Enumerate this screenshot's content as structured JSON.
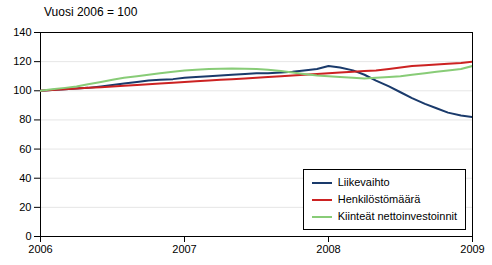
{
  "chart_data": {
    "type": "line",
    "title": "Vuosi 2006 = 100",
    "x": [
      2006.0,
      2006.08,
      2006.17,
      2006.25,
      2006.33,
      2006.42,
      2006.5,
      2006.58,
      2006.67,
      2006.75,
      2006.83,
      2006.92,
      2007.0,
      2007.08,
      2007.17,
      2007.25,
      2007.33,
      2007.42,
      2007.5,
      2007.58,
      2007.67,
      2007.75,
      2007.83,
      2007.92,
      2008.0,
      2008.08,
      2008.17,
      2008.25,
      2008.33,
      2008.42,
      2008.5,
      2008.58,
      2008.67,
      2008.75,
      2008.83,
      2008.92,
      2009.0
    ],
    "series": [
      {
        "name": "Liikevaihto",
        "color": "#1a3a6b",
        "values": [
          100,
          100.5,
          101,
          101.5,
          102,
          103,
          104,
          105,
          106,
          107,
          107.5,
          108,
          109,
          109.5,
          110,
          110.5,
          111,
          111.5,
          112,
          112,
          112.5,
          113,
          114,
          115,
          117,
          116,
          114,
          111,
          107,
          103,
          99,
          95,
          91,
          88,
          85,
          83,
          82
        ]
      },
      {
        "name": "Henkilöstömäärä",
        "color": "#cc2222",
        "values": [
          100,
          100.5,
          101,
          101.5,
          102,
          102.5,
          103,
          103.5,
          104,
          104.5,
          105,
          105.5,
          106,
          106.5,
          107,
          107.5,
          108,
          108.5,
          109,
          109.5,
          110,
          110.5,
          111,
          111.5,
          112,
          112.5,
          113,
          113.5,
          114,
          115,
          116,
          117,
          117.5,
          118,
          118.5,
          119,
          120
        ]
      },
      {
        "name": "Kiinteät nettoinvestoinnit",
        "color": "#88cc77",
        "values": [
          100,
          101,
          102,
          103,
          104.5,
          106,
          107.5,
          109,
          110,
          111,
          112,
          113,
          114,
          114.5,
          115,
          115.2,
          115.3,
          115.2,
          115,
          114.5,
          113.5,
          112.5,
          111.5,
          110.5,
          110,
          109.5,
          109,
          108.5,
          109,
          109.5,
          110,
          111,
          112,
          113,
          114,
          115,
          117
        ]
      }
    ],
    "xlim": [
      2006,
      2009
    ],
    "ylim": [
      0,
      140
    ],
    "xticks": [
      2006,
      2007,
      2008,
      2009
    ],
    "yticks": [
      0,
      20,
      40,
      60,
      80,
      100,
      120,
      140
    ],
    "grid": true,
    "legend": "lower right"
  }
}
